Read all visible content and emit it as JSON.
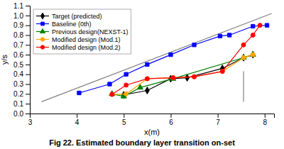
{
  "chart_data": {
    "type": "line",
    "title": "Fig 22. Estimated boundary layer transition on-set",
    "x_label": "x(m)",
    "y_label": "y/s",
    "xlim": [
      3,
      8.2
    ],
    "ylim": [
      0,
      1.1
    ],
    "xticks": [
      3,
      4,
      5,
      6,
      7,
      8
    ],
    "yticks": [
      {
        "value": 0,
        "label": "0.0"
      },
      0.1,
      0.2,
      0.3,
      0.4,
      0.5,
      0.6,
      0.7,
      0.8,
      0.9,
      {
        "value": 1,
        "label": "1.0"
      },
      1.1
    ],
    "legend": "upper left",
    "series": [
      {
        "color": "gray",
        "x": [
          3.25,
          8.15
        ],
        "values": [
          0.12,
          1.02
        ]
      },
      {
        "color": "gray",
        "x": [
          7.55,
          7.55
        ],
        "values": [
          0.12,
          0.43
        ]
      },
      {
        "name": "Target (predicted)",
        "color": "black",
        "marker": "diamond",
        "x": [
          5.0,
          5.5,
          6.0,
          6.35,
          7.1,
          7.55,
          7.75
        ],
        "values": [
          0.19,
          0.235,
          0.355,
          0.365,
          0.46,
          0.57,
          0.6
        ]
      },
      {
        "name": "Baseline (0th)",
        "color": "blue",
        "marker": "square",
        "x": [
          4.05,
          4.7,
          5.05,
          5.5,
          6.0,
          6.5,
          7.05,
          7.25,
          7.75,
          8.05
        ],
        "values": [
          0.21,
          0.3,
          0.4,
          0.5,
          0.6,
          0.7,
          0.79,
          0.8,
          0.89,
          0.9
        ]
      },
      {
        "name": "Previous design(NEXST-1)",
        "color": "green",
        "marker": "triangle",
        "x": [
          4.75,
          5.0,
          5.35,
          6.05,
          7.55,
          7.75
        ],
        "values": [
          0.2,
          0.175,
          0.265,
          0.355,
          0.57,
          0.6
        ]
      },
      {
        "name": "Modified design (Mod.1)",
        "color": "orange",
        "marker": "circle",
        "x": [
          4.75,
          5.05,
          5.5,
          6.05,
          6.5,
          7.1,
          7.55,
          7.75
        ],
        "values": [
          0.195,
          0.2,
          0.355,
          0.365,
          0.375,
          0.43,
          0.57,
          0.6
        ]
      },
      {
        "name": "Modified design (Mod.2)",
        "color": "red",
        "marker": "circle",
        "x": [
          4.75,
          5.05,
          5.5,
          6.05,
          6.5,
          7.1,
          7.55,
          7.75,
          7.9
        ],
        "values": [
          0.195,
          0.29,
          0.355,
          0.365,
          0.375,
          0.43,
          0.7,
          0.8,
          0.9
        ]
      }
    ]
  }
}
